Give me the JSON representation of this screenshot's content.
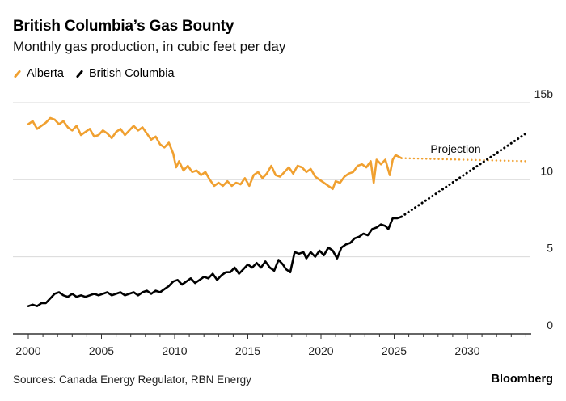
{
  "header": {
    "title": "British Columbia’s Gas Bounty",
    "subtitle": "Monthly gas production, in cubic feet per day"
  },
  "footer": {
    "source": "Sources: Canada Energy Regulator, RBN Energy",
    "brand": "Bloomberg"
  },
  "colors": {
    "alberta": "#F0A030",
    "british_columbia": "#000000",
    "grid": "#D9D9D9",
    "axis": "#333333"
  },
  "chart_data": {
    "type": "line",
    "title": "British Columbia’s Gas Bounty",
    "subtitle": "Monthly gas production, in cubic feet per day",
    "xlabel": "",
    "ylabel": "cubic feet per day",
    "xlim": [
      2000,
      2034.5
    ],
    "ylim": [
      0,
      15
    ],
    "x_ticks": [
      2000,
      2005,
      2010,
      2015,
      2020,
      2025,
      2030
    ],
    "x_minor_tick_step": 1,
    "y_ticks": [
      {
        "value": 0,
        "label": "0"
      },
      {
        "value": 5,
        "label": "5"
      },
      {
        "value": 10,
        "label": "10"
      },
      {
        "value": 15,
        "label": "15b"
      }
    ],
    "grid": true,
    "legend": {
      "placement": "top-left",
      "entries": [
        {
          "name": "Alberta",
          "color": "#F0A030"
        },
        {
          "name": "British Columbia",
          "color": "#000000"
        }
      ]
    },
    "annotations": [
      {
        "text": "Projection",
        "x": 2029.2,
        "y": 12.0
      }
    ],
    "series": [
      {
        "name": "Alberta",
        "color": "#F0A030",
        "style": "solid",
        "points": [
          [
            2000.0,
            13.6
          ],
          [
            2000.3,
            13.8
          ],
          [
            2000.6,
            13.3
          ],
          [
            2000.9,
            13.5
          ],
          [
            2001.2,
            13.7
          ],
          [
            2001.5,
            14.0
          ],
          [
            2001.8,
            13.9
          ],
          [
            2002.1,
            13.6
          ],
          [
            2002.4,
            13.8
          ],
          [
            2002.7,
            13.4
          ],
          [
            2003.0,
            13.2
          ],
          [
            2003.3,
            13.5
          ],
          [
            2003.6,
            12.9
          ],
          [
            2003.9,
            13.1
          ],
          [
            2004.2,
            13.3
          ],
          [
            2004.5,
            12.8
          ],
          [
            2004.8,
            12.9
          ],
          [
            2005.1,
            13.2
          ],
          [
            2005.4,
            13.0
          ],
          [
            2005.7,
            12.7
          ],
          [
            2006.0,
            13.1
          ],
          [
            2006.3,
            13.3
          ],
          [
            2006.6,
            12.9
          ],
          [
            2006.9,
            13.2
          ],
          [
            2007.2,
            13.5
          ],
          [
            2007.5,
            13.2
          ],
          [
            2007.8,
            13.4
          ],
          [
            2008.1,
            13.0
          ],
          [
            2008.4,
            12.6
          ],
          [
            2008.7,
            12.8
          ],
          [
            2009.0,
            12.3
          ],
          [
            2009.3,
            12.1
          ],
          [
            2009.6,
            12.4
          ],
          [
            2009.9,
            11.7
          ],
          [
            2010.1,
            10.8
          ],
          [
            2010.3,
            11.2
          ],
          [
            2010.6,
            10.6
          ],
          [
            2010.9,
            10.9
          ],
          [
            2011.2,
            10.5
          ],
          [
            2011.5,
            10.6
          ],
          [
            2011.8,
            10.3
          ],
          [
            2012.1,
            10.5
          ],
          [
            2012.4,
            10.0
          ],
          [
            2012.7,
            9.6
          ],
          [
            2013.0,
            9.8
          ],
          [
            2013.3,
            9.6
          ],
          [
            2013.6,
            9.9
          ],
          [
            2013.9,
            9.6
          ],
          [
            2014.2,
            9.8
          ],
          [
            2014.5,
            9.7
          ],
          [
            2014.8,
            10.1
          ],
          [
            2015.1,
            9.6
          ],
          [
            2015.4,
            10.3
          ],
          [
            2015.7,
            10.5
          ],
          [
            2016.0,
            10.1
          ],
          [
            2016.3,
            10.4
          ],
          [
            2016.6,
            10.9
          ],
          [
            2016.9,
            10.3
          ],
          [
            2017.2,
            10.2
          ],
          [
            2017.5,
            10.5
          ],
          [
            2017.8,
            10.8
          ],
          [
            2018.1,
            10.4
          ],
          [
            2018.4,
            10.9
          ],
          [
            2018.7,
            10.8
          ],
          [
            2019.0,
            10.5
          ],
          [
            2019.3,
            10.7
          ],
          [
            2019.6,
            10.2
          ],
          [
            2019.9,
            10.0
          ],
          [
            2020.2,
            9.8
          ],
          [
            2020.5,
            9.6
          ],
          [
            2020.8,
            9.4
          ],
          [
            2021.0,
            9.9
          ],
          [
            2021.3,
            9.8
          ],
          [
            2021.6,
            10.2
          ],
          [
            2021.9,
            10.4
          ],
          [
            2022.2,
            10.5
          ],
          [
            2022.5,
            10.9
          ],
          [
            2022.8,
            11.0
          ],
          [
            2023.1,
            10.8
          ],
          [
            2023.4,
            11.2
          ],
          [
            2023.6,
            9.8
          ],
          [
            2023.8,
            11.3
          ],
          [
            2024.1,
            11.0
          ],
          [
            2024.4,
            11.3
          ],
          [
            2024.7,
            10.3
          ],
          [
            2024.9,
            11.3
          ],
          [
            2025.1,
            11.6
          ],
          [
            2025.5,
            11.4
          ]
        ]
      },
      {
        "name": "Alberta projection",
        "color": "#F0A030",
        "style": "dotted",
        "points": [
          [
            2025.5,
            11.4
          ],
          [
            2034.1,
            11.2
          ]
        ]
      },
      {
        "name": "British Columbia",
        "color": "#000000",
        "style": "solid",
        "points": [
          [
            2000.0,
            1.8
          ],
          [
            2000.3,
            1.9
          ],
          [
            2000.6,
            1.8
          ],
          [
            2000.9,
            2.0
          ],
          [
            2001.2,
            2.0
          ],
          [
            2001.5,
            2.3
          ],
          [
            2001.8,
            2.6
          ],
          [
            2002.1,
            2.7
          ],
          [
            2002.4,
            2.5
          ],
          [
            2002.7,
            2.4
          ],
          [
            2003.0,
            2.6
          ],
          [
            2003.3,
            2.4
          ],
          [
            2003.6,
            2.5
          ],
          [
            2003.9,
            2.4
          ],
          [
            2004.2,
            2.5
          ],
          [
            2004.5,
            2.6
          ],
          [
            2004.8,
            2.5
          ],
          [
            2005.1,
            2.6
          ],
          [
            2005.4,
            2.7
          ],
          [
            2005.7,
            2.5
          ],
          [
            2006.0,
            2.6
          ],
          [
            2006.3,
            2.7
          ],
          [
            2006.6,
            2.5
          ],
          [
            2006.9,
            2.6
          ],
          [
            2007.2,
            2.7
          ],
          [
            2007.5,
            2.5
          ],
          [
            2007.8,
            2.7
          ],
          [
            2008.1,
            2.8
          ],
          [
            2008.4,
            2.6
          ],
          [
            2008.7,
            2.8
          ],
          [
            2009.0,
            2.7
          ],
          [
            2009.3,
            2.9
          ],
          [
            2009.6,
            3.1
          ],
          [
            2009.9,
            3.4
          ],
          [
            2010.2,
            3.5
          ],
          [
            2010.5,
            3.2
          ],
          [
            2010.8,
            3.4
          ],
          [
            2011.1,
            3.6
          ],
          [
            2011.4,
            3.3
          ],
          [
            2011.7,
            3.5
          ],
          [
            2012.0,
            3.7
          ],
          [
            2012.3,
            3.6
          ],
          [
            2012.6,
            3.9
          ],
          [
            2012.9,
            3.5
          ],
          [
            2013.2,
            3.8
          ],
          [
            2013.5,
            4.0
          ],
          [
            2013.8,
            4.0
          ],
          [
            2014.1,
            4.3
          ],
          [
            2014.4,
            3.9
          ],
          [
            2014.7,
            4.2
          ],
          [
            2015.0,
            4.5
          ],
          [
            2015.3,
            4.3
          ],
          [
            2015.6,
            4.6
          ],
          [
            2015.9,
            4.3
          ],
          [
            2016.2,
            4.7
          ],
          [
            2016.5,
            4.3
          ],
          [
            2016.8,
            4.1
          ],
          [
            2017.1,
            4.8
          ],
          [
            2017.4,
            4.5
          ],
          [
            2017.6,
            4.2
          ],
          [
            2017.9,
            4.0
          ],
          [
            2018.2,
            5.3
          ],
          [
            2018.5,
            5.2
          ],
          [
            2018.8,
            5.3
          ],
          [
            2019.0,
            4.9
          ],
          [
            2019.3,
            5.3
          ],
          [
            2019.6,
            5.0
          ],
          [
            2019.9,
            5.4
          ],
          [
            2020.2,
            5.1
          ],
          [
            2020.5,
            5.6
          ],
          [
            2020.8,
            5.4
          ],
          [
            2021.1,
            4.9
          ],
          [
            2021.4,
            5.6
          ],
          [
            2021.7,
            5.8
          ],
          [
            2022.0,
            5.9
          ],
          [
            2022.3,
            6.2
          ],
          [
            2022.6,
            6.3
          ],
          [
            2022.9,
            6.5
          ],
          [
            2023.2,
            6.4
          ],
          [
            2023.5,
            6.8
          ],
          [
            2023.8,
            6.9
          ],
          [
            2024.1,
            7.1
          ],
          [
            2024.4,
            7.0
          ],
          [
            2024.6,
            6.8
          ],
          [
            2024.9,
            7.5
          ],
          [
            2025.2,
            7.5
          ],
          [
            2025.5,
            7.6
          ]
        ]
      },
      {
        "name": "British Columbia projection",
        "color": "#000000",
        "style": "dotted",
        "points": [
          [
            2025.5,
            7.6
          ],
          [
            2034.0,
            13.0
          ]
        ]
      }
    ]
  }
}
